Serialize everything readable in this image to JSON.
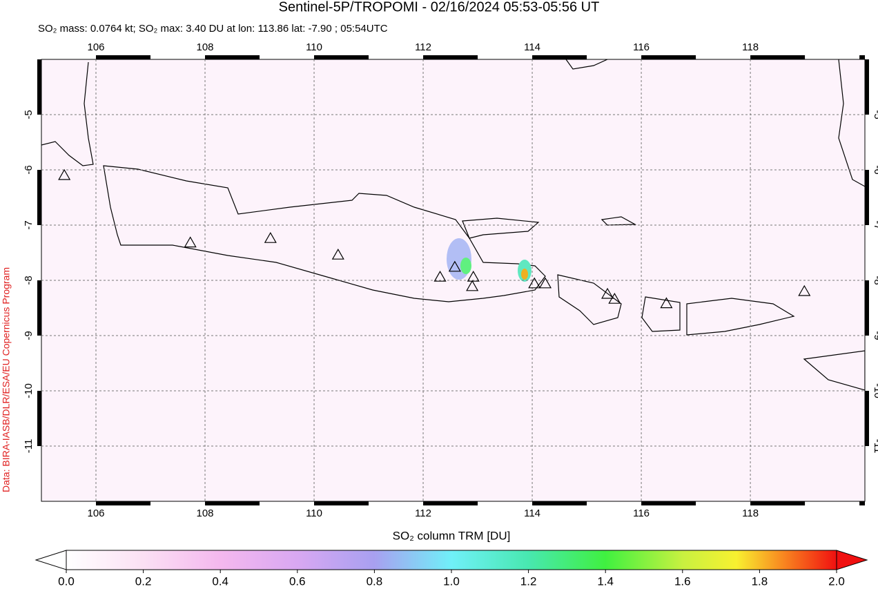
{
  "chart_data": {
    "type": "map",
    "title": "Sentinel-5P/TROPOMI - 02/16/2024 05:53-05:56 UT",
    "subtitle": "SO₂ mass: 0.0764 kt; SO₂ max: 3.40 DU at lon: 113.86 lat: -7.90 ; 05:54UTC",
    "credit": "Data: BIRA-IASB/DLR/ESA/EU Copernicus Program",
    "xlim": [
      105,
      120.1
    ],
    "ylim": [
      -12,
      -4
    ],
    "xticks": [
      106,
      108,
      110,
      112,
      114,
      116,
      118
    ],
    "yticks": [
      -5,
      -6,
      -7,
      -8,
      -9,
      -10,
      -11
    ],
    "grid": true,
    "volcanoes": {
      "lon": [
        105.42,
        107.73,
        109.2,
        110.44,
        112.31,
        112.58,
        112.92,
        112.9,
        114.04,
        114.24,
        115.38,
        115.51,
        116.46,
        118.99
      ],
      "lat": [
        -6.1,
        -7.32,
        -7.24,
        -7.54,
        -7.94,
        -7.76,
        -7.94,
        -8.11,
        -8.06,
        -8.06,
        -8.25,
        -8.34,
        -8.42,
        -8.2
      ]
    },
    "colorbar": {
      "label": "SO₂ column TRM [DU]",
      "lim": [
        0,
        2
      ],
      "ticks": [
        {
          "value": 0,
          "label": "0.0"
        },
        {
          "value": 0.2,
          "label": "0.2"
        },
        {
          "value": 0.4,
          "label": "0.4"
        },
        {
          "value": 0.6,
          "label": "0.6"
        },
        {
          "value": 0.8,
          "label": "0.8"
        },
        {
          "value": 1,
          "label": "1.0"
        },
        {
          "value": 1.2,
          "label": "1.2"
        },
        {
          "value": 1.4,
          "label": "1.4"
        },
        {
          "value": 1.6,
          "label": "1.6"
        },
        {
          "value": 1.8,
          "label": "1.8"
        },
        {
          "value": 2,
          "label": "2.0"
        }
      ]
    }
  }
}
